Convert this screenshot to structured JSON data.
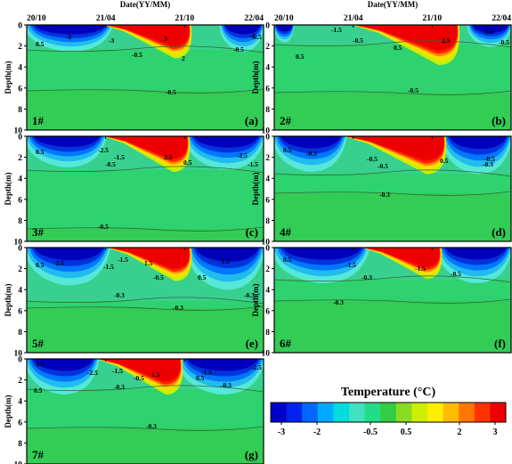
{
  "chart_data": {
    "type": "heatmap",
    "x_label": "Date(YY/MM)",
    "y_label": "Depth(m)",
    "x_ticks": [
      "20/10",
      "21/04",
      "21/10",
      "22/04"
    ],
    "y_ticks": [
      0,
      2,
      4,
      6,
      8,
      10
    ],
    "ylim": [
      10,
      0
    ],
    "colorbar": {
      "title": "Temperature (°C)",
      "ticks": [
        -3,
        -2,
        -0.5,
        0.5,
        2,
        3
      ],
      "range": [
        -3.3,
        3.3
      ],
      "colors": [
        "#0000cc",
        "#0022ee",
        "#0066ff",
        "#00aaff",
        "#00dddd",
        "#40e0c0",
        "#22dd88",
        "#33cc44",
        "#88dd22",
        "#ccee00",
        "#ffee00",
        "#ffbb00",
        "#ff7700",
        "#ff3300",
        "#ee0000"
      ]
    },
    "panels": [
      {
        "well": "1#",
        "letter": "(a)",
        "contour_labels": [
          "-2",
          "-3",
          "-0.5",
          "0.5",
          "3",
          "2",
          "-0.5",
          "-0.5",
          "-2",
          "-0.5"
        ]
      },
      {
        "well": "2#",
        "letter": "(b)",
        "contour_labels": [
          "0.5",
          "-1.5",
          "-0.5",
          "0.5",
          "2.5",
          "-0.5",
          "-0.5",
          "-1.5"
        ]
      },
      {
        "well": "3#",
        "letter": "(c)",
        "contour_labels": [
          "0.5",
          "-2.5",
          "-1.5",
          "-0.5",
          "2.5",
          "0.5",
          "-2.5",
          "-1.5",
          "-0.5"
        ]
      },
      {
        "well": "4#",
        "letter": "(d)",
        "contour_labels": [
          "0.5",
          "-0.3",
          "-0.5",
          "-0.5",
          "0.5",
          "-0.5",
          "-0.3",
          "-0.3"
        ]
      },
      {
        "well": "5#",
        "letter": "(e)",
        "contour_labels": [
          "0.5",
          "-2.5",
          "-1.5",
          "-1.5",
          "1.5",
          "-0.5",
          "-1.5",
          "-0.3",
          "0.5",
          "-0.3",
          "-0.3"
        ]
      },
      {
        "well": "6#",
        "letter": "(f)",
        "contour_labels": [
          "0.5",
          "-1.5",
          "-0.3",
          "-1.5",
          "-0.5",
          "-0.3"
        ]
      },
      {
        "well": "7#",
        "letter": "(g)",
        "contour_labels": [
          "1.5",
          "-2.5",
          "-1.5",
          "-0.5",
          "-0.3",
          "1.5",
          "-1.5",
          "0.5",
          "-2.5",
          "-0.3",
          "0.5",
          "-0.3"
        ]
      }
    ]
  }
}
